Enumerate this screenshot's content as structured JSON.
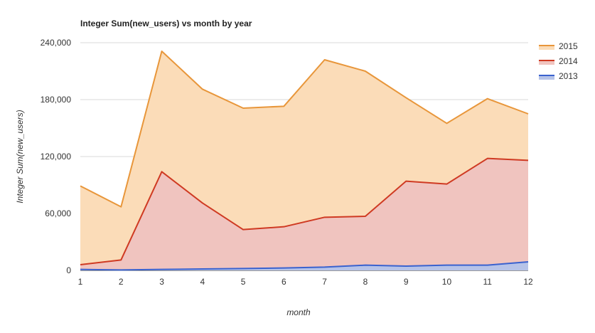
{
  "chart_data": {
    "type": "area",
    "title": "Integer Sum(new_users) vs month by year",
    "xlabel": "month",
    "ylabel": "Integer Sum(new_users)",
    "x": [
      1,
      2,
      3,
      4,
      5,
      6,
      7,
      8,
      9,
      10,
      11,
      12
    ],
    "ylim": [
      0,
      240000
    ],
    "yticks": [
      "0",
      "60,000",
      "120,000",
      "180,000",
      "240,000"
    ],
    "ytick_values": [
      0,
      60000,
      120000,
      180000,
      240000
    ],
    "grid": true,
    "legend_position": "top-right",
    "series": [
      {
        "name": "2015",
        "color": "#e8963a",
        "fill": "#fbdcb8",
        "values": [
          89000,
          67000,
          231000,
          191000,
          171000,
          173000,
          222000,
          210000,
          182000,
          155000,
          181000,
          165000
        ]
      },
      {
        "name": "2014",
        "color": "#cf3a22",
        "fill": "#f0c4bf",
        "values": [
          6000,
          11000,
          104000,
          71000,
          43000,
          46000,
          56000,
          57000,
          94000,
          91000,
          118000,
          116000
        ]
      },
      {
        "name": "2013",
        "color": "#3a62cf",
        "fill": "#b6c3e8",
        "values": [
          1000,
          500,
          1000,
          1500,
          2000,
          2500,
          3500,
          5500,
          4500,
          5500,
          5500,
          9000
        ]
      }
    ]
  }
}
